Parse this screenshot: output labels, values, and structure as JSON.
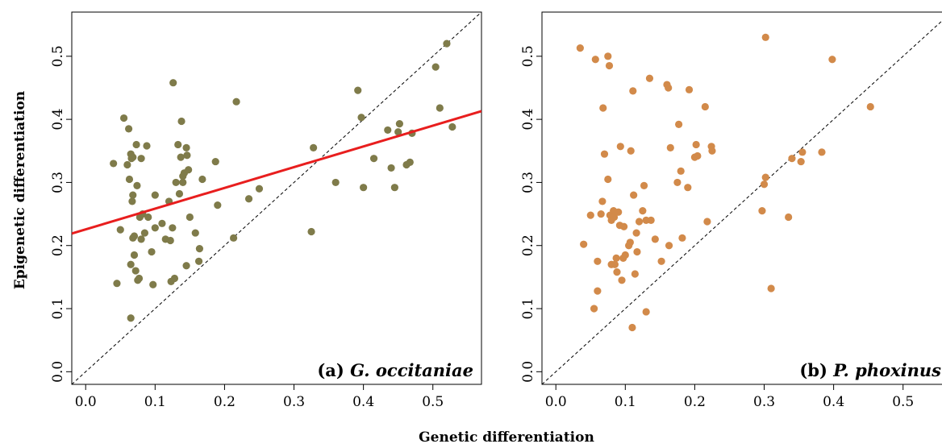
{
  "figure": {
    "xlabel": "Genetic differentiation",
    "ylabel": "Epigenetic differentiation"
  },
  "chart_data": [
    {
      "type": "scatter",
      "panel_tag": "(a)",
      "panel_species": "G. occitaniae",
      "xlim": [
        -0.02,
        0.57
      ],
      "ylim": [
        -0.02,
        0.57
      ],
      "xticks": [
        "0.0",
        "0.1",
        "0.2",
        "0.3",
        "0.4",
        "0.5"
      ],
      "yticks": [
        "0.0",
        "0.1",
        "0.2",
        "0.3",
        "0.4",
        "0.5"
      ],
      "point_color": "#7f7b4a",
      "identity_line": true,
      "regression_line": {
        "x": [
          -0.02,
          0.57
        ],
        "y": [
          0.219,
          0.413
        ],
        "color": "#e81e1e"
      },
      "points": [
        [
          0.04,
          0.33
        ],
        [
          0.045,
          0.14
        ],
        [
          0.05,
          0.225
        ],
        [
          0.055,
          0.402
        ],
        [
          0.06,
          0.328
        ],
        [
          0.062,
          0.385
        ],
        [
          0.063,
          0.305
        ],
        [
          0.065,
          0.345
        ],
        [
          0.066,
          0.338
        ],
        [
          0.067,
          0.27
        ],
        [
          0.068,
          0.28
        ],
        [
          0.068,
          0.34
        ],
        [
          0.065,
          0.17
        ],
        [
          0.065,
          0.085
        ],
        [
          0.068,
          0.212
        ],
        [
          0.07,
          0.215
        ],
        [
          0.07,
          0.185
        ],
        [
          0.072,
          0.16
        ],
        [
          0.073,
          0.36
        ],
        [
          0.074,
          0.295
        ],
        [
          0.075,
          0.145
        ],
        [
          0.077,
          0.148
        ],
        [
          0.078,
          0.245
        ],
        [
          0.08,
          0.21
        ],
        [
          0.08,
          0.338
        ],
        [
          0.082,
          0.25
        ],
        [
          0.085,
          0.22
        ],
        [
          0.088,
          0.358
        ],
        [
          0.09,
          0.245
        ],
        [
          0.095,
          0.19
        ],
        [
          0.097,
          0.138
        ],
        [
          0.1,
          0.28
        ],
        [
          0.1,
          0.228
        ],
        [
          0.11,
          0.235
        ],
        [
          0.115,
          0.21
        ],
        [
          0.12,
          0.27
        ],
        [
          0.122,
          0.208
        ],
        [
          0.123,
          0.143
        ],
        [
          0.125,
          0.228
        ],
        [
          0.126,
          0.458
        ],
        [
          0.128,
          0.148
        ],
        [
          0.13,
          0.3
        ],
        [
          0.133,
          0.36
        ],
        [
          0.135,
          0.282
        ],
        [
          0.137,
          0.34
        ],
        [
          0.138,
          0.397
        ],
        [
          0.14,
          0.31
        ],
        [
          0.14,
          0.3
        ],
        [
          0.142,
          0.315
        ],
        [
          0.145,
          0.355
        ],
        [
          0.145,
          0.168
        ],
        [
          0.146,
          0.343
        ],
        [
          0.148,
          0.32
        ],
        [
          0.15,
          0.245
        ],
        [
          0.158,
          0.22
        ],
        [
          0.163,
          0.175
        ],
        [
          0.164,
          0.195
        ],
        [
          0.168,
          0.305
        ],
        [
          0.187,
          0.333
        ],
        [
          0.19,
          0.264
        ],
        [
          0.213,
          0.212
        ],
        [
          0.217,
          0.428
        ],
        [
          0.235,
          0.274
        ],
        [
          0.25,
          0.29
        ],
        [
          0.325,
          0.222
        ],
        [
          0.328,
          0.355
        ],
        [
          0.36,
          0.3
        ],
        [
          0.392,
          0.446
        ],
        [
          0.397,
          0.403
        ],
        [
          0.4,
          0.292
        ],
        [
          0.415,
          0.338
        ],
        [
          0.435,
          0.383
        ],
        [
          0.44,
          0.323
        ],
        [
          0.445,
          0.292
        ],
        [
          0.45,
          0.38
        ],
        [
          0.452,
          0.393
        ],
        [
          0.462,
          0.328
        ],
        [
          0.467,
          0.332
        ],
        [
          0.47,
          0.378
        ],
        [
          0.504,
          0.483
        ],
        [
          0.51,
          0.418
        ],
        [
          0.52,
          0.52
        ],
        [
          0.528,
          0.388
        ]
      ]
    },
    {
      "type": "scatter",
      "panel_tag": "(b)",
      "panel_species": "P. phoxinus",
      "xlim": [
        -0.02,
        0.57
      ],
      "ylim": [
        -0.02,
        0.57
      ],
      "xticks": [
        "0.0",
        "0.1",
        "0.2",
        "0.3",
        "0.4",
        "0.5"
      ],
      "yticks": [
        "0.0",
        "0.1",
        "0.2",
        "0.3",
        "0.4",
        "0.5"
      ],
      "point_color": "#d28a4a",
      "identity_line": true,
      "points": [
        [
          0.035,
          0.513
        ],
        [
          0.04,
          0.202
        ],
        [
          0.05,
          0.248
        ],
        [
          0.055,
          0.1
        ],
        [
          0.057,
          0.495
        ],
        [
          0.06,
          0.175
        ],
        [
          0.06,
          0.128
        ],
        [
          0.065,
          0.25
        ],
        [
          0.067,
          0.27
        ],
        [
          0.068,
          0.418
        ],
        [
          0.07,
          0.345
        ],
        [
          0.075,
          0.5
        ],
        [
          0.075,
          0.305
        ],
        [
          0.077,
          0.485
        ],
        [
          0.078,
          0.248
        ],
        [
          0.08,
          0.24
        ],
        [
          0.08,
          0.17
        ],
        [
          0.083,
          0.255
        ],
        [
          0.084,
          0.245
        ],
        [
          0.085,
          0.17
        ],
        [
          0.087,
          0.18
        ],
        [
          0.088,
          0.158
        ],
        [
          0.09,
          0.253
        ],
        [
          0.092,
          0.232
        ],
        [
          0.093,
          0.357
        ],
        [
          0.095,
          0.145
        ],
        [
          0.097,
          0.18
        ],
        [
          0.098,
          0.23
        ],
        [
          0.1,
          0.185
        ],
        [
          0.105,
          0.2
        ],
        [
          0.107,
          0.205
        ],
        [
          0.108,
          0.35
        ],
        [
          0.11,
          0.07
        ],
        [
          0.111,
          0.445
        ],
        [
          0.112,
          0.28
        ],
        [
          0.114,
          0.155
        ],
        [
          0.116,
          0.22
        ],
        [
          0.117,
          0.19
        ],
        [
          0.12,
          0.238
        ],
        [
          0.125,
          0.255
        ],
        [
          0.127,
          0.295
        ],
        [
          0.13,
          0.095
        ],
        [
          0.13,
          0.24
        ],
        [
          0.135,
          0.465
        ],
        [
          0.137,
          0.24
        ],
        [
          0.143,
          0.21
        ],
        [
          0.152,
          0.175
        ],
        [
          0.16,
          0.455
        ],
        [
          0.162,
          0.45
        ],
        [
          0.163,
          0.2
        ],
        [
          0.165,
          0.355
        ],
        [
          0.175,
          0.3
        ],
        [
          0.177,
          0.392
        ],
        [
          0.18,
          0.318
        ],
        [
          0.182,
          0.212
        ],
        [
          0.19,
          0.292
        ],
        [
          0.192,
          0.447
        ],
        [
          0.2,
          0.34
        ],
        [
          0.202,
          0.36
        ],
        [
          0.204,
          0.342
        ],
        [
          0.215,
          0.42
        ],
        [
          0.218,
          0.238
        ],
        [
          0.224,
          0.357
        ],
        [
          0.225,
          0.35
        ],
        [
          0.297,
          0.255
        ],
        [
          0.3,
          0.297
        ],
        [
          0.302,
          0.53
        ],
        [
          0.302,
          0.308
        ],
        [
          0.31,
          0.132
        ],
        [
          0.335,
          0.245
        ],
        [
          0.34,
          0.338
        ],
        [
          0.353,
          0.333
        ],
        [
          0.355,
          0.348
        ],
        [
          0.383,
          0.348
        ],
        [
          0.398,
          0.495
        ],
        [
          0.453,
          0.42
        ]
      ]
    }
  ]
}
